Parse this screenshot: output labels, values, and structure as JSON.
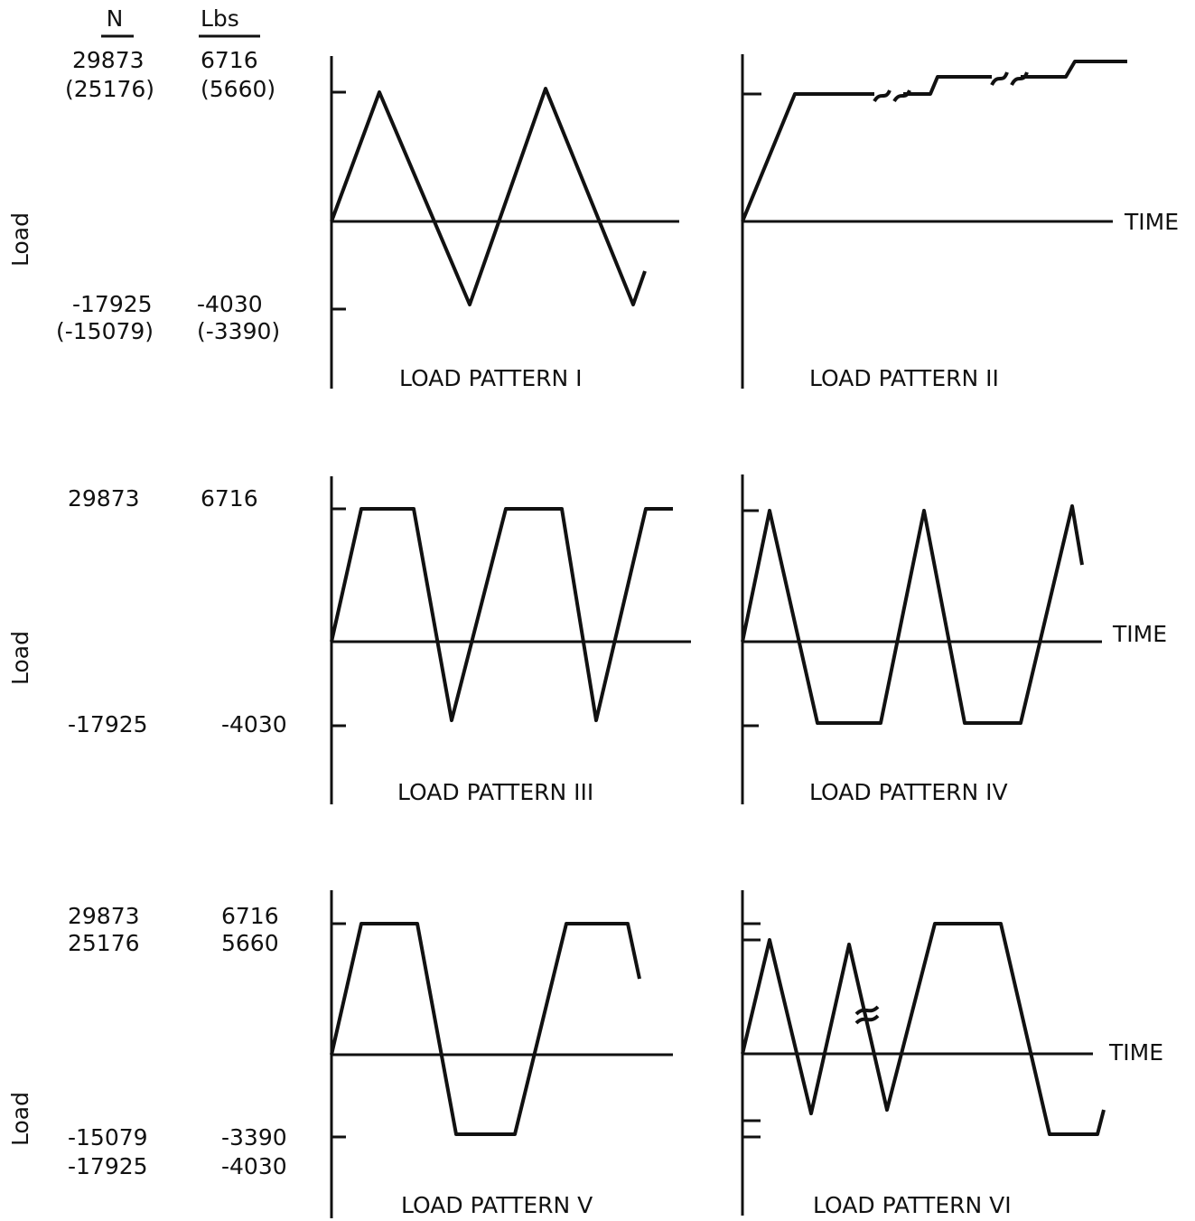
{
  "header": {
    "n_unit": "N",
    "lbs_unit": "Lbs"
  },
  "rows": [
    {
      "axis_label": "Load",
      "n_labels": [
        "29873",
        "(25176)",
        "-17925",
        "(-15079)"
      ],
      "lbs_labels": [
        "6716",
        "(5660)",
        "-4030",
        "(-3390)"
      ],
      "left_title": "LOAD PATTERN I",
      "right_title": "LOAD PATTERN II",
      "time_label": "TIME"
    },
    {
      "axis_label": "Load",
      "n_labels": [
        "29873",
        "-17925"
      ],
      "lbs_labels": [
        "6716",
        "-4030"
      ],
      "left_title": "LOAD PATTERN III",
      "right_title": "LOAD PATTERN IV",
      "time_label": "TIME"
    },
    {
      "axis_label": "Load",
      "n_labels": [
        "29873",
        "25176",
        "-15079",
        "-17925"
      ],
      "lbs_labels": [
        "6716",
        "5660",
        "-3390",
        "-4030"
      ],
      "left_title": "LOAD PATTERN V",
      "right_title": "LOAD PATTERN VI",
      "time_label": "TIME"
    }
  ]
}
